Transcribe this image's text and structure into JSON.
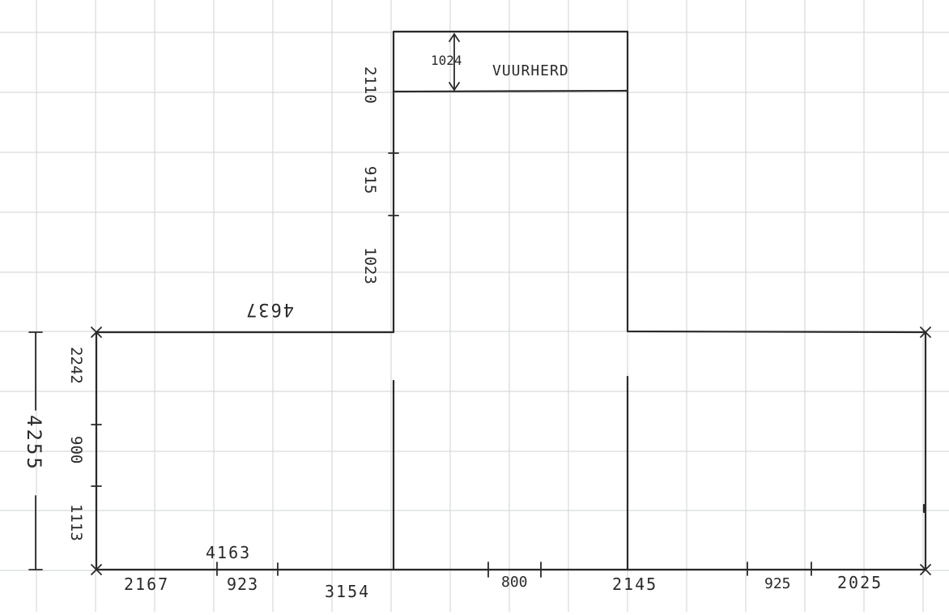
{
  "colors": {
    "paper": "#ffffff",
    "grid": "#d7d9dc",
    "ink": "#2a2a2a"
  },
  "labels": {
    "hearth": "VUURHERD",
    "dim_1024": "1024",
    "dim_2110": "2110",
    "dim_915": "915",
    "dim_1023": "1023",
    "dim_4637": "4637",
    "dim_2242": "2242",
    "dim_900": "900",
    "dim_1113": "1113",
    "dim_4255": "4255",
    "dim_4163": "4163",
    "dim_2167": "2167",
    "dim_923": "923",
    "dim_3154": "3154",
    "dim_800": "800",
    "dim_2145": "2145",
    "dim_925": "925",
    "dim_2025": "2025"
  }
}
